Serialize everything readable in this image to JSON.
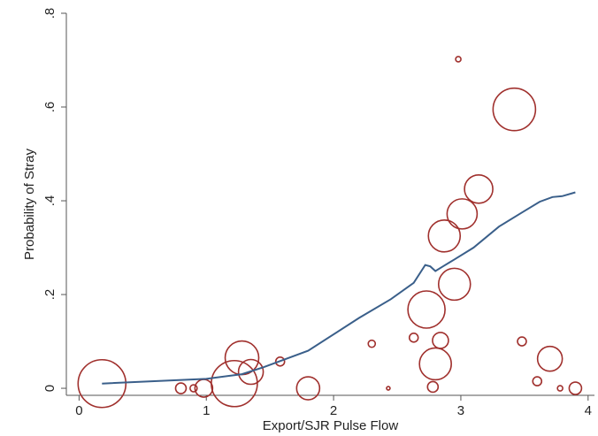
{
  "chart_data": {
    "type": "scatter",
    "title": "",
    "xlabel": "Export/SJR Pulse Flow",
    "ylabel": "Probability of Stray",
    "xlim": [
      -0.1,
      4.05
    ],
    "ylim": [
      -0.015,
      0.8
    ],
    "x_ticks": [
      0,
      1,
      2,
      3,
      4
    ],
    "x_tick_labels": [
      "0",
      "1",
      "2",
      "3",
      "4"
    ],
    "y_ticks": [
      0,
      0.2,
      0.4,
      0.6,
      0.8
    ],
    "y_tick_labels": [
      "0",
      ".2",
      ".4",
      ".6",
      ".8"
    ],
    "grid": false,
    "colors": {
      "points": "#a0302d",
      "line": "#3a5f8a",
      "axis": "#555555"
    },
    "series": [
      {
        "type": "scatter",
        "points": [
          {
            "x": 0.18,
            "y": 0.01,
            "weight": 27
          },
          {
            "x": 0.8,
            "y": 0.0,
            "weight": 6
          },
          {
            "x": 0.9,
            "y": 0.0,
            "weight": 4
          },
          {
            "x": 0.98,
            "y": 0.0,
            "weight": 10
          },
          {
            "x": 1.22,
            "y": 0.01,
            "weight": 26
          },
          {
            "x": 1.28,
            "y": 0.065,
            "weight": 19
          },
          {
            "x": 1.35,
            "y": 0.035,
            "weight": 14
          },
          {
            "x": 1.58,
            "y": 0.057,
            "weight": 5
          },
          {
            "x": 1.8,
            "y": 0.0,
            "weight": 13
          },
          {
            "x": 2.3,
            "y": 0.095,
            "weight": 4
          },
          {
            "x": 2.43,
            "y": 0.0,
            "weight": 2
          },
          {
            "x": 2.63,
            "y": 0.108,
            "weight": 5
          },
          {
            "x": 2.73,
            "y": 0.168,
            "weight": 21
          },
          {
            "x": 2.78,
            "y": 0.003,
            "weight": 6
          },
          {
            "x": 2.8,
            "y": 0.052,
            "weight": 18
          },
          {
            "x": 2.84,
            "y": 0.102,
            "weight": 9
          },
          {
            "x": 2.87,
            "y": 0.325,
            "weight": 18
          },
          {
            "x": 2.95,
            "y": 0.222,
            "weight": 18
          },
          {
            "x": 2.98,
            "y": 0.702,
            "weight": 3
          },
          {
            "x": 3.01,
            "y": 0.372,
            "weight": 17
          },
          {
            "x": 3.14,
            "y": 0.425,
            "weight": 16
          },
          {
            "x": 3.42,
            "y": 0.595,
            "weight": 24
          },
          {
            "x": 3.48,
            "y": 0.1,
            "weight": 5
          },
          {
            "x": 3.6,
            "y": 0.015,
            "weight": 5
          },
          {
            "x": 3.7,
            "y": 0.063,
            "weight": 14
          },
          {
            "x": 3.78,
            "y": 0.0,
            "weight": 3
          },
          {
            "x": 3.9,
            "y": 0.0,
            "weight": 7
          }
        ]
      },
      {
        "type": "line",
        "points": [
          {
            "x": 0.18,
            "y": 0.01
          },
          {
            "x": 1.0,
            "y": 0.02
          },
          {
            "x": 1.28,
            "y": 0.03
          },
          {
            "x": 1.45,
            "y": 0.045
          },
          {
            "x": 1.8,
            "y": 0.08
          },
          {
            "x": 2.2,
            "y": 0.15
          },
          {
            "x": 2.45,
            "y": 0.19
          },
          {
            "x": 2.63,
            "y": 0.225
          },
          {
            "x": 2.72,
            "y": 0.263
          },
          {
            "x": 2.76,
            "y": 0.26
          },
          {
            "x": 2.8,
            "y": 0.25
          },
          {
            "x": 2.86,
            "y": 0.26
          },
          {
            "x": 2.95,
            "y": 0.275
          },
          {
            "x": 3.1,
            "y": 0.3
          },
          {
            "x": 3.3,
            "y": 0.345
          },
          {
            "x": 3.48,
            "y": 0.375
          },
          {
            "x": 3.62,
            "y": 0.398
          },
          {
            "x": 3.72,
            "y": 0.408
          },
          {
            "x": 3.8,
            "y": 0.41
          },
          {
            "x": 3.9,
            "y": 0.418
          }
        ]
      }
    ]
  }
}
